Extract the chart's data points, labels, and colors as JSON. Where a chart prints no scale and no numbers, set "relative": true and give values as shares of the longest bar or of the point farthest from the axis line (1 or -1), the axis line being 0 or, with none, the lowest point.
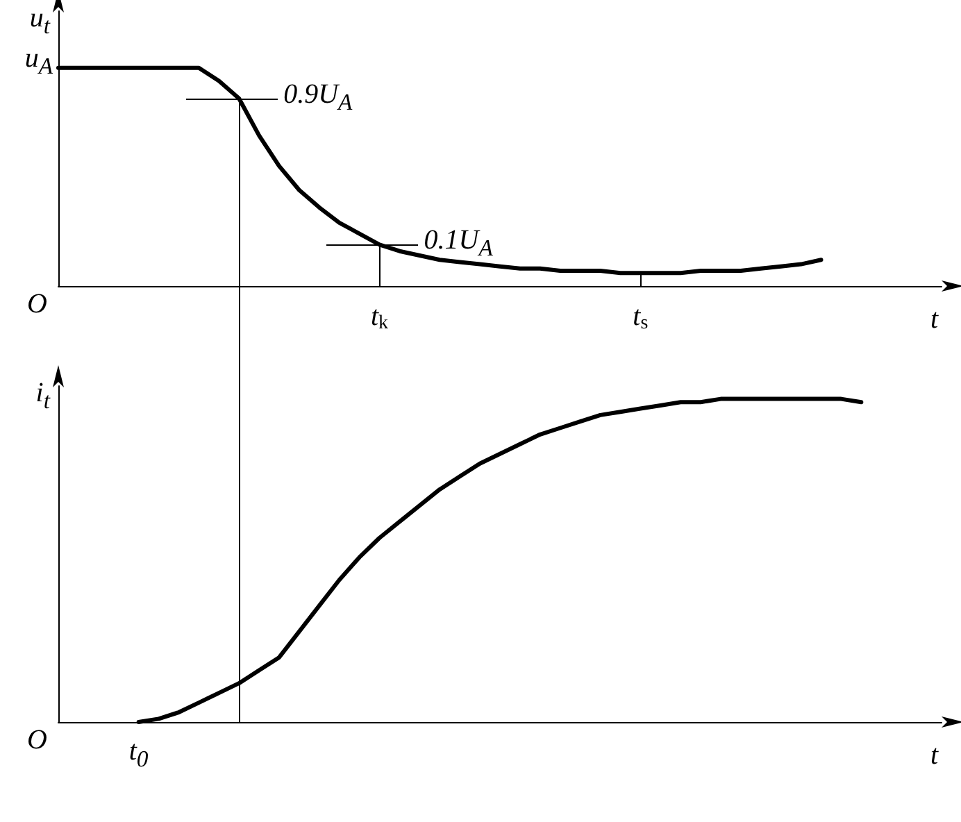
{
  "chart_data": [
    {
      "type": "line",
      "relative": true,
      "xlabel": "t",
      "ylabel": "u$_{t}$",
      "categories": [
        null,
        null,
        null,
        null,
        null,
        null,
        null,
        null,
        null,
        null,
        null,
        null,
        null,
        null,
        null,
        null,
        "t$_{k}$",
        null,
        null,
        null,
        null,
        null,
        null,
        null,
        null,
        null,
        null,
        null,
        null,
        "t$_{s}$",
        null,
        null,
        null,
        null,
        null,
        null,
        null,
        null,
        null,
        null,
        null,
        null,
        null,
        null,
        null
      ],
      "marker": "none",
      "line_style": "solid",
      "series": [
        {
          "color": "#000000",
          "values": [
            1,
            1,
            1,
            1,
            1,
            1,
            1,
            1,
            0.94,
            0.86,
            0.69,
            0.55,
            0.44,
            0.36,
            0.29,
            0.24,
            0.19,
            0.16,
            0.14,
            0.12,
            0.11,
            0.1,
            0.09,
            0.08,
            0.08,
            0.07,
            0.07,
            0.07,
            0.06,
            0.06,
            0.06,
            0.06,
            0.07,
            0.07,
            0.07,
            0.08,
            0.09,
            0.1,
            0.12,
            null,
            null,
            null,
            null,
            null,
            null
          ]
        }
      ],
      "annotations": [
        "O",
        "u$_{A}$",
        "0.9U$_{A}$",
        {
          "text": "0.1U$_{A}$",
          "x": "t$_{k}$",
          "y": 0.19
        }
      ]
    },
    {
      "type": "line",
      "relative": true,
      "xlabel": "t",
      "ylabel": "i$_{t}$",
      "categories": [
        null,
        null,
        null,
        null,
        null,
        null,
        null,
        null,
        null,
        null,
        null,
        null,
        null,
        null,
        null,
        null,
        null,
        null,
        null,
        null,
        null,
        null,
        null,
        null,
        null,
        null,
        null,
        null,
        null,
        null,
        null,
        null,
        null,
        null,
        null,
        null,
        null,
        null,
        null,
        null,
        null,
        null,
        null,
        null,
        null
      ],
      "marker": "none",
      "line_style": "solid",
      "series": [
        {
          "color": "#000000",
          "values": [
            null,
            null,
            null,
            null,
            0,
            0.01,
            0.03,
            0.06,
            0.09,
            0.12,
            0.16,
            0.2,
            0.28,
            0.36,
            0.44,
            0.51,
            0.57,
            0.62,
            0.67,
            0.72,
            0.76,
            0.8,
            0.83,
            0.86,
            0.89,
            0.91,
            0.93,
            0.95,
            0.96,
            0.97,
            0.98,
            0.99,
            0.99,
            1,
            1,
            1,
            1,
            1,
            1,
            1,
            0.99,
            null,
            null,
            null,
            null
          ]
        }
      ],
      "annotations": [
        "O",
        "t$_{0}$"
      ]
    }
  ]
}
